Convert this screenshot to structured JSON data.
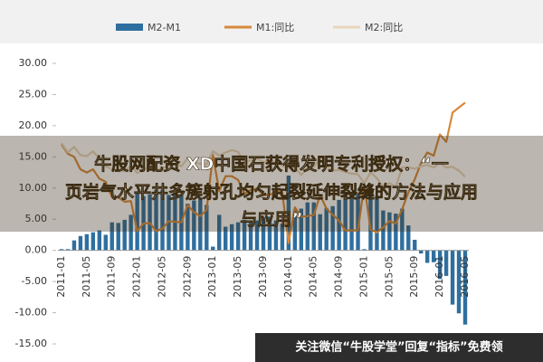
{
  "chart_data": {
    "type": "bar-line",
    "categories": [
      "2011-01",
      null,
      null,
      null,
      "2011-05",
      null,
      null,
      null,
      "2011-09",
      null,
      null,
      null,
      "2012-01",
      null,
      null,
      null,
      "2012-05",
      null,
      null,
      null,
      "2012-09",
      null,
      null,
      null,
      "2013-01",
      null,
      null,
      null,
      "2013-05",
      null,
      null,
      null,
      "2013-09",
      null,
      null,
      null,
      "2014-01",
      null,
      null,
      null,
      "2014-05",
      null,
      null,
      null,
      "2014-09",
      null,
      null,
      null,
      "2015-01",
      null,
      null,
      null,
      "2015-05",
      null,
      null,
      null,
      "2015-09",
      null,
      null,
      null,
      "2016-01",
      null,
      null,
      null,
      "2016-05"
    ],
    "series": [
      {
        "name": "M2-M1",
        "type": "bar",
        "color": "#2f6f9f",
        "values": [
          0.2,
          0.2,
          1.6,
          2.3,
          2.6,
          2.9,
          3.2,
          2.5,
          4.5,
          4.4,
          4.9,
          5.7,
          9.3,
          8.7,
          9.0,
          9.7,
          9.7,
          8.9,
          9.3,
          9.0,
          7.5,
          8.0,
          8.4,
          7.3,
          0.6,
          5.7,
          3.8,
          4.2,
          4.5,
          4.9,
          4.8,
          4.8,
          5.3,
          5.4,
          4.8,
          4.3,
          12.0,
          6.4,
          6.7,
          7.7,
          7.7,
          5.8,
          6.8,
          7.1,
          8.1,
          9.4,
          9.1,
          9.0,
          0.2,
          9.2,
          8.7,
          6.4,
          6.1,
          5.9,
          6.7,
          4.0,
          1.7,
          -0.5,
          -2.0,
          -1.9,
          -4.6,
          -4.1,
          -8.7,
          -10.1,
          -11.9
        ]
      },
      {
        "name": "M1:同比",
        "type": "line",
        "color": "#d8893a",
        "values": [
          17,
          15.5,
          15,
          13,
          12.5,
          13,
          11.5,
          11,
          8.5,
          8.5,
          7.8,
          7.9,
          3.1,
          4.3,
          4.4,
          3.1,
          3.5,
          4.7,
          4.6,
          4.5,
          7.3,
          6.1,
          5.5,
          6.5,
          15.3,
          9.5,
          11.9,
          11.9,
          11.3,
          9.1,
          9.7,
          9.9,
          8.9,
          8.9,
          9.4,
          9.3,
          1.2,
          6.9,
          5.4,
          5.5,
          5.7,
          8.9,
          6.7,
          5.7,
          4.8,
          3.2,
          3.2,
          3.2,
          10.6,
          3.3,
          2.9,
          3.7,
          4.7,
          4.3,
          6.6,
          9.3,
          11.4,
          14.0,
          15.7,
          15.2,
          18.6,
          17.4,
          22.1,
          22.9,
          23.7
        ]
      },
      {
        "name": "M2:同比",
        "type": "line",
        "color": "#e9d6bb",
        "values": [
          17.2,
          15.7,
          16.6,
          15.3,
          15.1,
          15.9,
          14.7,
          13.5,
          13.0,
          12.9,
          12.7,
          13.6,
          12.4,
          13.0,
          13.4,
          12.8,
          13.2,
          13.6,
          13.9,
          13.5,
          14.8,
          14.1,
          13.9,
          13.8,
          15.9,
          15.2,
          15.7,
          16.1,
          15.8,
          14.0,
          14.5,
          14.7,
          14.2,
          14.3,
          14.2,
          13.6,
          13.2,
          13.3,
          12.1,
          13.2,
          13.4,
          14.7,
          13.5,
          12.8,
          12.9,
          12.6,
          12.3,
          12.2,
          10.8,
          12.5,
          11.6,
          10.1,
          10.8,
          10.2,
          13.3,
          13.3,
          13.1,
          13.5,
          13.7,
          13.3,
          14.0,
          13.3,
          13.4,
          12.8,
          11.8
        ]
      }
    ],
    "ylim": [
      -15,
      30
    ],
    "yticks": [
      {
        "value": -15,
        "label": "-15.00"
      },
      {
        "value": -10,
        "label": "-10.00"
      },
      {
        "value": -5,
        "label": "-5.00"
      },
      {
        "value": 0,
        "label": "0.00"
      },
      {
        "value": 5,
        "label": "5.00"
      },
      {
        "value": 10,
        "label": "10.00"
      },
      {
        "value": 15,
        "label": "15.00"
      },
      {
        "value": 20,
        "label": "20.00"
      },
      {
        "value": 25,
        "label": "25.00"
      },
      {
        "value": 30,
        "label": "30.00"
      }
    ],
    "grid": false,
    "legend": "top"
  },
  "overlay_title": [
    "牛股网配资 XD中国石获得发明专利授权：“一",
    "页岩气水平井多簇射孔均匀起裂延伸裂缝的方法与应用",
    "与应用”"
  ],
  "watermark": "关注微信“牛股学堂”回复“指标”免费领"
}
